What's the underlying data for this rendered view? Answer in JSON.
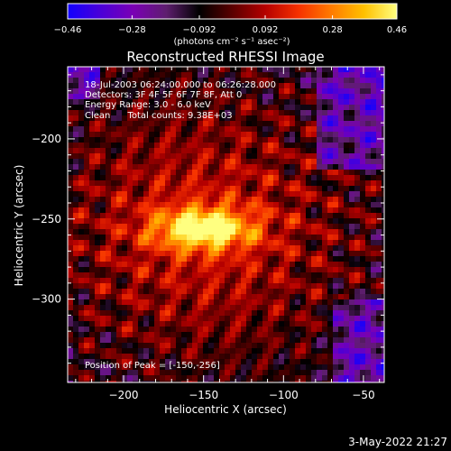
{
  "chart_data": {
    "type": "heatmap",
    "title": "Reconstructed RHESSI Image",
    "xlabel": "Heliocentric X (arcsec)",
    "ylabel": "Heliocentric Y (arcsec)",
    "xlim": [
      -235,
      -37
    ],
    "ylim": [
      -352,
      -155
    ],
    "x_ticks": [
      {
        "value": -200,
        "label": "−200"
      },
      {
        "value": -150,
        "label": "−150"
      },
      {
        "value": -100,
        "label": "−100"
      },
      {
        "value": -50,
        "label": "−50"
      }
    ],
    "y_ticks": [
      {
        "value": -200,
        "label": "−200"
      },
      {
        "value": -250,
        "label": "−250"
      },
      {
        "value": -300,
        "label": "−300"
      }
    ],
    "colorbar": {
      "range": [
        -0.46,
        0.46
      ],
      "ticks": [
        {
          "value": -0.46,
          "label": "−0.46"
        },
        {
          "value": -0.28,
          "label": "−0.28"
        },
        {
          "value": -0.092,
          "label": "−0.092"
        },
        {
          "value": 0.092,
          "label": "0.092"
        },
        {
          "value": 0.28,
          "label": "0.28"
        },
        {
          "value": 0.46,
          "label": "0.46"
        }
      ],
      "unit_label": "(photons cm⁻² s⁻¹ asec⁻²)",
      "colors": [
        "#1200ff",
        "#4a00d8",
        "#7a00b4",
        "#5e1e6e",
        "#000000",
        "#5a0000",
        "#b50000",
        "#f53000",
        "#ff7a00",
        "#ffc000",
        "#ffff80"
      ]
    },
    "annotations": [
      "18-Jul-2003 06:24:00.000 to 06:26:28.000",
      "Detectors: 3F 4F 5F 6F 7F 8F, Att 0",
      "Energy Range: 3.0 - 6.0 keV",
      "Clean      Total counts: 9.38E+03",
      "Position of Peak = [-150,-256]"
    ],
    "peak": {
      "x": -150,
      "y": -256
    },
    "footer": "3-May-2022 21:27"
  }
}
